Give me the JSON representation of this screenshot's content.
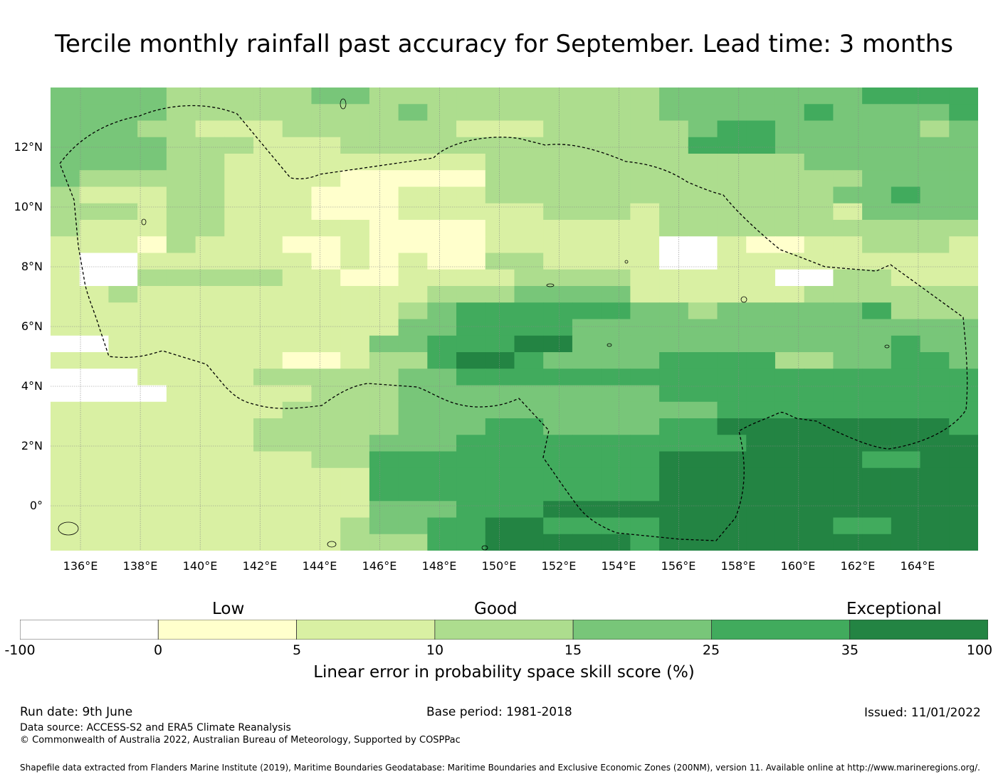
{
  "title": "Tercile monthly rainfall past accuracy for September. Lead time: 3 months",
  "map": {
    "lat_labels": [
      "12°N",
      "10°N",
      "8°N",
      "6°N",
      "4°N",
      "2°N",
      "0°"
    ],
    "lon_labels": [
      "136°E",
      "138°E",
      "140°E",
      "142°E",
      "144°E",
      "146°E",
      "148°E",
      "150°E",
      "152°E",
      "154°E",
      "156°E",
      "158°E",
      "160°E",
      "162°E",
      "164°E"
    ],
    "lon_range": [
      135,
      166
    ],
    "lat_range": [
      -1.5,
      14
    ],
    "grid_lat": [
      12,
      10,
      8,
      6,
      4,
      2,
      0
    ],
    "grid_lon": [
      136,
      138,
      140,
      142,
      144,
      146,
      148,
      150,
      152,
      154,
      156,
      158,
      160,
      162,
      164
    ],
    "cell_size_deg": [
      0.83,
      0.56
    ],
    "rows_top_to_bottom": [
      "44443333344333333333344444445555",
      "44443333333343333333344444544445",
      "44433222333333222333334554444434",
      "44443332223333333333335554444444",
      "44443322222222233333333333444444",
      "43333322221111133333333333334444",
      "32223322211122233333333333344544",
      "33323322211122222333233333324444",
      "32223322222111122222233333333333",
      "22213222112111122222200211223332",
      "20022222212121133222200222222222",
      "20033333221122223333222220033222",
      "22322222222223334444222222333333",
      "22222222222234555555443444445333",
      "22222222222244555544444444444444",
      "00222222222445556644444444444544",
      "22222222112335665444455553344554",
      "00022223333344555555555555555555",
      "00002222233344444444455555555555",
      "22222222333344444444444555555555",
      "22222223333344455444455666666665",
      "22222223333444555555555566666666",
      "22222222233555555555566666665566",
      "22222222222555555555566666666666",
      "22222222222555555555566666666666",
      "22222222222444555666666666666666",
      "22222222223445566555566666655666",
      "22222222223335566666566666666666"
    ]
  },
  "category_labels": {
    "low": "Low",
    "good": "Good",
    "exceptional": "Exceptional"
  },
  "colorbar": {
    "ticks": [
      "-100",
      "0",
      "5",
      "10",
      "15",
      "25",
      "35",
      "100"
    ],
    "colors": [
      "#ffffff",
      "#ffffcc",
      "#d9f0a3",
      "#addd8e",
      "#78c679",
      "#41ab5d",
      "#238443"
    ],
    "title": "Linear error in probability space skill score (%)"
  },
  "footer": {
    "run_date": "Run date: 9th June",
    "base_period": "Base period: 1981-2018",
    "issued": "Issued: 11/01/2022",
    "data_source": "Data source: ACCESS-S2 and ERA5 Climate Reanalysis",
    "copyright": "© Commonwealth of Australia 2022, Australian Bureau of Meteorology, Supported by COSPPac",
    "shapefile": "Shapefile data extracted from Flanders Marine Institute (2019), Maritime Boundaries Geodatabase: Maritime Boundaries and Exclusive Economic Zones (200NM), version 11. Available online at http://www.marineregions.org/."
  }
}
